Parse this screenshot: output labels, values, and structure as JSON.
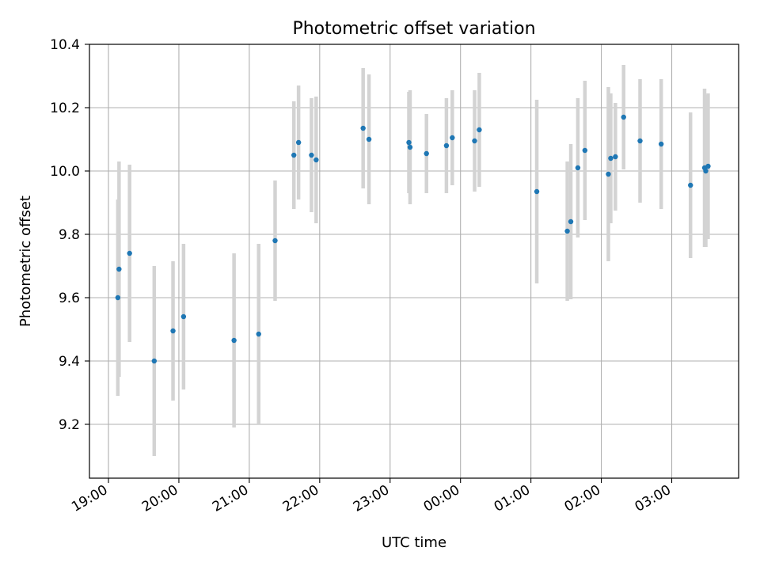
{
  "chart_data": {
    "type": "scatter",
    "title": "Photometric offset variation",
    "xlabel": "UTC time",
    "ylabel": "Photometric offset",
    "xlim_hours": [
      18.73,
      27.95
    ],
    "ylim": [
      9.03,
      10.4
    ],
    "y_ticks": [
      9.2,
      9.4,
      9.6,
      9.8,
      10.0,
      10.2,
      10.4
    ],
    "y_tick_labels": [
      "9.2",
      "9.4",
      "9.6",
      "9.8",
      "10.0",
      "10.2",
      "10.4"
    ],
    "x_ticks_hours": [
      19,
      20,
      21,
      22,
      23,
      24,
      25,
      26,
      27
    ],
    "x_tick_labels": [
      "19:00",
      "20:00",
      "21:00",
      "22:00",
      "23:00",
      "00:00",
      "01:00",
      "02:00",
      "03:00"
    ],
    "grid": true,
    "colors": {
      "point": "#1f77b4",
      "errorbar": "#d3d3d3",
      "grid": "#b0b0b0"
    },
    "points": [
      {
        "time": "19:08",
        "y": 9.6,
        "err": 0.31
      },
      {
        "time": "19:09",
        "y": 9.69,
        "err": 0.34
      },
      {
        "time": "19:18",
        "y": 9.74,
        "err": 0.28
      },
      {
        "time": "19:39",
        "y": 9.4,
        "err": 0.3
      },
      {
        "time": "19:55",
        "y": 9.495,
        "err": 0.22
      },
      {
        "time": "20:04",
        "y": 9.54,
        "err": 0.23
      },
      {
        "time": "20:47",
        "y": 9.465,
        "err": 0.275
      },
      {
        "time": "21:08",
        "y": 9.485,
        "err": 0.285
      },
      {
        "time": "21:22",
        "y": 9.78,
        "err": 0.19
      },
      {
        "time": "21:38",
        "y": 10.05,
        "err": 0.17
      },
      {
        "time": "21:42",
        "y": 10.09,
        "err": 0.18
      },
      {
        "time": "21:53",
        "y": 10.05,
        "err": 0.18
      },
      {
        "time": "21:57",
        "y": 10.035,
        "err": 0.2
      },
      {
        "time": "22:37",
        "y": 10.135,
        "err": 0.19
      },
      {
        "time": "22:42",
        "y": 10.1,
        "err": 0.205
      },
      {
        "time": "23:16",
        "y": 10.09,
        "err": 0.16
      },
      {
        "time": "23:17",
        "y": 10.075,
        "err": 0.18
      },
      {
        "time": "23:31",
        "y": 10.055,
        "err": 0.125
      },
      {
        "time": "23:48",
        "y": 10.08,
        "err": 0.15
      },
      {
        "time": "23:53",
        "y": 10.105,
        "err": 0.15
      },
      {
        "time": "00:12",
        "y": 10.095,
        "err": 0.16
      },
      {
        "time": "00:16",
        "y": 10.13,
        "err": 0.18
      },
      {
        "time": "01:05",
        "y": 9.935,
        "err": 0.29
      },
      {
        "time": "01:31",
        "y": 9.81,
        "err": 0.22
      },
      {
        "time": "01:34",
        "y": 9.84,
        "err": 0.245
      },
      {
        "time": "01:40",
        "y": 10.01,
        "err": 0.22
      },
      {
        "time": "01:46",
        "y": 10.065,
        "err": 0.22
      },
      {
        "time": "02:06",
        "y": 9.99,
        "err": 0.275
      },
      {
        "time": "02:08",
        "y": 10.04,
        "err": 0.205
      },
      {
        "time": "02:12",
        "y": 10.045,
        "err": 0.17
      },
      {
        "time": "02:19",
        "y": 10.17,
        "err": 0.165
      },
      {
        "time": "02:33",
        "y": 10.095,
        "err": 0.195
      },
      {
        "time": "02:51",
        "y": 10.085,
        "err": 0.205
      },
      {
        "time": "03:16",
        "y": 9.955,
        "err": 0.23
      },
      {
        "time": "03:28",
        "y": 10.01,
        "err": 0.25
      },
      {
        "time": "03:29",
        "y": 10.0,
        "err": 0.24
      },
      {
        "time": "03:31",
        "y": 10.015,
        "err": 0.23
      }
    ]
  }
}
